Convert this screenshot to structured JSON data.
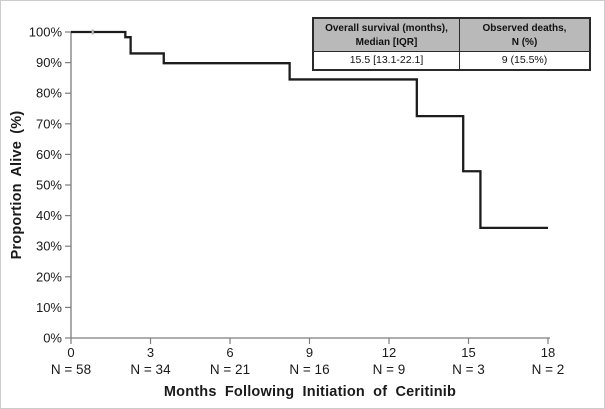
{
  "figure": {
    "background": "#ffffff",
    "border_color": "#cccccc"
  },
  "axes": {
    "y_title": "Proportion Alive (%)",
    "x_title": "Months Following Initiation of Ceritinib"
  },
  "summary_table": {
    "header_bg": "#b9b9b9",
    "col1": {
      "header_line1": "Overall survival (months),",
      "header_line2": "Median [IQR]",
      "value": "15.5 [13.1-22.1]"
    },
    "col2": {
      "header_line1": "Observed deaths,",
      "header_line2": "N (%)",
      "value": "9 (15.5%)"
    }
  },
  "chart_data": {
    "type": "line",
    "subtype": "kaplan-meier-step-curve",
    "title": "",
    "xlabel": "Months Following Initiation of Ceritinib",
    "ylabel": "Proportion Alive (%)",
    "xlim": [
      0,
      18
    ],
    "ylim": [
      0,
      100
    ],
    "grid": false,
    "legend": "none",
    "line_color": "#1c1c1c",
    "axis_color": "#7d7d7d",
    "x_ticks": [
      {
        "value": 0,
        "label": "0",
        "at_risk": "N = 58"
      },
      {
        "value": 3,
        "label": "3",
        "at_risk": "N = 34"
      },
      {
        "value": 6,
        "label": "6",
        "at_risk": "N = 21"
      },
      {
        "value": 9,
        "label": "9",
        "at_risk": "N = 16"
      },
      {
        "value": 12,
        "label": "12",
        "at_risk": "N = 9"
      },
      {
        "value": 15,
        "label": "15",
        "at_risk": "N = 3"
      },
      {
        "value": 18,
        "label": "18",
        "at_risk": "N = 2"
      }
    ],
    "y_ticks": [
      {
        "value": 100,
        "label": "100%"
      },
      {
        "value": 90,
        "label": "90%"
      },
      {
        "value": 80,
        "label": "80%"
      },
      {
        "value": 70,
        "label": "70%"
      },
      {
        "value": 60,
        "label": "60%"
      },
      {
        "value": 50,
        "label": "50%"
      },
      {
        "value": 40,
        "label": "40%"
      },
      {
        "value": 30,
        "label": "30%"
      },
      {
        "value": 20,
        "label": "20%"
      },
      {
        "value": 10,
        "label": "10%"
      },
      {
        "value": 0,
        "label": "0%"
      }
    ],
    "series": [
      {
        "name": "Overall survival",
        "steps": [
          {
            "from": 0,
            "to": 2.05,
            "value": 100
          },
          {
            "from": 2.05,
            "to": 2.25,
            "value": 98.3
          },
          {
            "from": 2.25,
            "to": 3.5,
            "value": 93.0
          },
          {
            "from": 3.5,
            "to": 8.25,
            "value": 89.8
          },
          {
            "from": 8.25,
            "to": 13.05,
            "value": 84.5
          },
          {
            "from": 13.05,
            "to": 14.8,
            "value": 72.5
          },
          {
            "from": 14.8,
            "to": 15.45,
            "value": 54.5
          },
          {
            "from": 15.45,
            "to": 18,
            "value": 36.0
          }
        ],
        "censor_marks": [
          {
            "x": 0.82,
            "value": 100
          }
        ]
      }
    ],
    "median_survival_months": "15.5 [13.1-22.1]",
    "observed_deaths": "9 (15.5%)"
  }
}
